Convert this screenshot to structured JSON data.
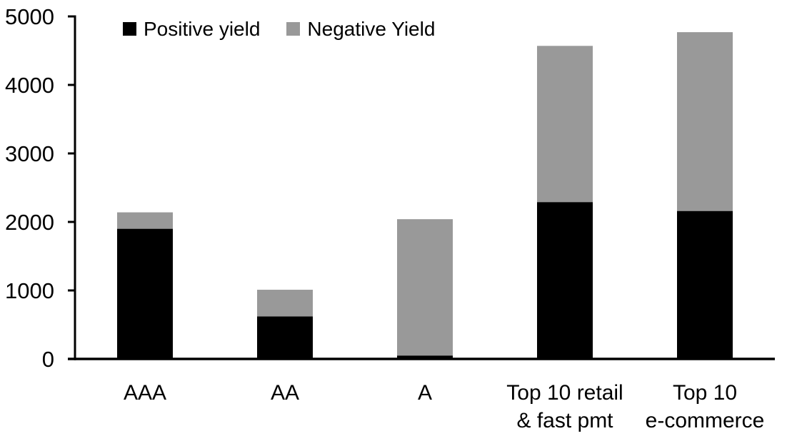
{
  "chart_data": {
    "type": "bar",
    "stacked": true,
    "title": "",
    "xlabel": "",
    "ylabel": "",
    "grid": false,
    "legend_position": "top",
    "ylim": [
      0,
      5000
    ],
    "yticks": [
      0,
      1000,
      2000,
      3000,
      4000,
      5000
    ],
    "categories": [
      "AAA",
      "AA",
      "A",
      "Top 10 retail\n& fast pmt",
      "Top 10\ne-commerce"
    ],
    "series": [
      {
        "name": "Positive yield",
        "color": "#000000",
        "values": [
          1900,
          620,
          50,
          2290,
          2160
        ]
      },
      {
        "name": "Negative Yield",
        "color": "#999999",
        "values": [
          240,
          390,
          1990,
          2280,
          2610
        ]
      }
    ],
    "totals": [
      2140,
      1010,
      2040,
      4570,
      4770
    ]
  },
  "colors": {
    "axis": "#000000",
    "background": "#ffffff",
    "positive_series": "#000000",
    "negative_series": "#999999"
  }
}
